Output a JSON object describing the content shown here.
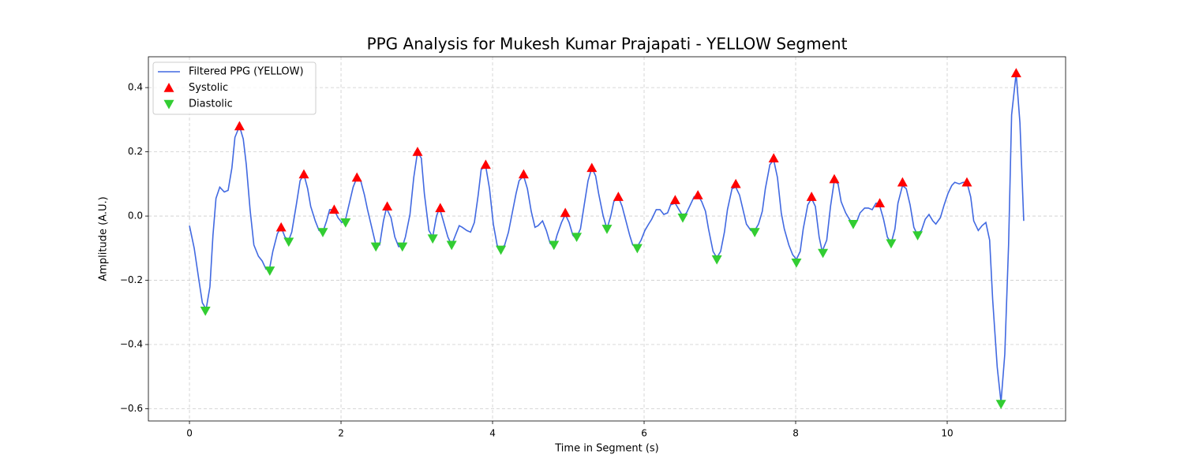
{
  "chart_data": {
    "type": "line",
    "title": "PPG Analysis for Mukesh Kumar Prajapati - YELLOW Segment",
    "x_label": "Time in Segment (s)",
    "y_label": "Amplitude (A.U.)",
    "xlim": [
      -0.542,
      11.5625
    ],
    "ylim": [
      -0.638,
      0.496
    ],
    "xticks": [
      0,
      2,
      4,
      6,
      8,
      10
    ],
    "yticks": [
      {
        "value": -0.6,
        "label": "−0.6"
      },
      {
        "value": -0.4,
        "label": "−0.4"
      },
      {
        "value": -0.2,
        "label": "−0.2"
      },
      {
        "value": 0,
        "label": "0.0"
      },
      0.2,
      0.4
    ],
    "grid": true,
    "legend": "upper left",
    "series": [
      {
        "name": "Filtered PPG (YELLOW)",
        "color": "#4169e1",
        "marker": "line",
        "x": [
          0,
          0.0625,
          0.125,
          0.17,
          0.22,
          0.27,
          0.31,
          0.35,
          0.4,
          0.46,
          0.51,
          0.56,
          0.6,
          0.66,
          0.71,
          0.75,
          0.8,
          0.85,
          0.91,
          0.96,
          1.01,
          1.06,
          1.1,
          1.16,
          1.21,
          1.26,
          1.31,
          1.35,
          1.41,
          1.46,
          1.51,
          1.56,
          1.6,
          1.66,
          1.71,
          1.76,
          1.81,
          1.85,
          1.91,
          1.96,
          2.01,
          2.06,
          2.1,
          2.16,
          2.21,
          2.26,
          2.31,
          2.35,
          2.41,
          2.46,
          2.51,
          2.56,
          2.6,
          2.66,
          2.71,
          2.76,
          2.81,
          2.85,
          2.91,
          2.96,
          3.01,
          3.06,
          3.1,
          3.16,
          3.21,
          3.26,
          3.3,
          3.35,
          3.41,
          3.46,
          3.51,
          3.56,
          3.6,
          3.66,
          3.71,
          3.76,
          3.81,
          3.85,
          3.91,
          3.96,
          4.01,
          4.06,
          4.1,
          4.16,
          4.21,
          4.26,
          4.31,
          4.35,
          4.41,
          4.46,
          4.51,
          4.56,
          4.6,
          4.66,
          4.71,
          4.76,
          4.81,
          4.85,
          4.91,
          4.96,
          5.01,
          5.06,
          5.1,
          5.16,
          5.21,
          5.26,
          5.31,
          5.36,
          5.4,
          5.46,
          5.51,
          5.56,
          5.6,
          5.66,
          5.71,
          5.76,
          5.81,
          5.85,
          5.91,
          5.96,
          6.01,
          6.06,
          6.1,
          6.16,
          6.21,
          6.26,
          6.31,
          6.35,
          6.41,
          6.46,
          6.51,
          6.56,
          6.6,
          6.66,
          6.71,
          6.76,
          6.81,
          6.85,
          6.91,
          6.96,
          7.01,
          7.06,
          7.1,
          7.16,
          7.21,
          7.26,
          7.31,
          7.35,
          7.41,
          7.46,
          7.51,
          7.56,
          7.6,
          7.66,
          7.71,
          7.76,
          7.81,
          7.85,
          7.91,
          7.96,
          8.01,
          8.06,
          8.1,
          8.16,
          8.21,
          8.26,
          8.31,
          8.35,
          8.41,
          8.46,
          8.51,
          8.56,
          8.6,
          8.66,
          8.71,
          8.76,
          8.81,
          8.85,
          8.91,
          8.96,
          9.01,
          9.06,
          9.1,
          9.16,
          9.21,
          9.26,
          9.31,
          9.35,
          9.41,
          9.46,
          9.51,
          9.56,
          9.6,
          9.66,
          9.71,
          9.76,
          9.81,
          9.85,
          9.91,
          9.96,
          10.01,
          10.06,
          10.1,
          10.16,
          10.21,
          10.26,
          10.31,
          10.35,
          10.41,
          10.46,
          10.51,
          10.56,
          10.6,
          10.66,
          10.71,
          10.76,
          10.81,
          10.85,
          10.91,
          10.96,
          11.01
        ],
        "values": [
          -0.03,
          -0.1,
          -0.2,
          -0.27,
          -0.29,
          -0.22,
          -0.06,
          0.055,
          0.09,
          0.075,
          0.08,
          0.15,
          0.245,
          0.28,
          0.24,
          0.16,
          0.02,
          -0.09,
          -0.125,
          -0.14,
          -0.165,
          -0.16,
          -0.11,
          -0.055,
          -0.035,
          -0.065,
          -0.075,
          -0.05,
          0.035,
          0.11,
          0.13,
          0.085,
          0.03,
          -0.015,
          -0.045,
          -0.05,
          -0.015,
          0.02,
          0.02,
          -0.005,
          -0.02,
          -0.01,
          0.03,
          0.09,
          0.12,
          0.11,
          0.065,
          0.02,
          -0.04,
          -0.09,
          -0.09,
          -0.015,
          0.025,
          -0.005,
          -0.065,
          -0.095,
          -0.095,
          -0.065,
          0.005,
          0.12,
          0.2,
          0.18,
          0.07,
          -0.045,
          -0.065,
          0,
          0.025,
          -0.015,
          -0.065,
          -0.09,
          -0.06,
          -0.03,
          -0.035,
          -0.045,
          -0.05,
          -0.02,
          0.065,
          0.145,
          0.155,
          0.085,
          -0.025,
          -0.09,
          -0.105,
          -0.09,
          -0.05,
          0.01,
          0.07,
          0.11,
          0.125,
          0.085,
          0.015,
          -0.035,
          -0.03,
          -0.015,
          -0.045,
          -0.085,
          -0.095,
          -0.06,
          -0.02,
          0.005,
          -0.02,
          -0.06,
          -0.07,
          -0.04,
          0.035,
          0.11,
          0.15,
          0.125,
          0.07,
          0,
          -0.04,
          0,
          0.045,
          0.06,
          0.03,
          -0.015,
          -0.06,
          -0.09,
          -0.095,
          -0.075,
          -0.045,
          -0.025,
          -0.01,
          0.02,
          0.02,
          0.005,
          0.01,
          0.035,
          0.04,
          0.02,
          0,
          0.01,
          0.03,
          0.06,
          0.065,
          0.045,
          0.015,
          -0.04,
          -0.11,
          -0.13,
          -0.11,
          -0.05,
          0.02,
          0.085,
          0.09,
          0.065,
          0.015,
          -0.025,
          -0.045,
          -0.045,
          -0.025,
          0.015,
          0.085,
          0.16,
          0.175,
          0.12,
          0.01,
          -0.04,
          -0.09,
          -0.12,
          -0.135,
          -0.11,
          -0.04,
          0.035,
          0.055,
          0.03,
          -0.065,
          -0.11,
          -0.075,
          0.03,
          0.11,
          0.1,
          0.045,
          0.01,
          -0.01,
          -0.025,
          -0.015,
          0.01,
          0.025,
          0.025,
          0.02,
          0.04,
          0.04,
          -0.01,
          -0.065,
          -0.085,
          -0.04,
          0.04,
          0.095,
          0.085,
          0.035,
          -0.035,
          -0.055,
          -0.045,
          -0.01,
          0.005,
          -0.015,
          -0.025,
          -0.005,
          0.035,
          0.07,
          0.095,
          0.105,
          0.1,
          0.105,
          0.105,
          0.06,
          -0.015,
          -0.045,
          -0.03,
          -0.02,
          -0.075,
          -0.26,
          -0.47,
          -0.58,
          -0.43,
          -0.09,
          0.315,
          0.445,
          0.29,
          -0.015
        ]
      },
      {
        "name": "Systolic",
        "color": "#ff0000",
        "marker": "triangle-up",
        "x": [
          0.66,
          1.21,
          1.51,
          1.91,
          2.21,
          2.61,
          3.01,
          3.31,
          3.91,
          4.41,
          4.96,
          5.31,
          5.66,
          6.41,
          6.71,
          7.21,
          7.71,
          8.21,
          8.51,
          9.11,
          9.41,
          10.26,
          10.91
        ],
        "values": [
          0.28,
          -0.035,
          0.13,
          0.02,
          0.12,
          0.03,
          0.2,
          0.025,
          0.16,
          0.13,
          0.01,
          0.15,
          0.06,
          0.05,
          0.065,
          0.1,
          0.18,
          0.06,
          0.115,
          0.04,
          0.105,
          0.105,
          0.445
        ]
      },
      {
        "name": "Diastolic",
        "color": "#32cd32",
        "marker": "triangle-down",
        "x": [
          0.21,
          1.06,
          1.31,
          1.76,
          2.06,
          2.46,
          2.81,
          3.21,
          3.46,
          4.11,
          4.81,
          5.11,
          5.51,
          5.91,
          6.51,
          6.96,
          7.46,
          8.01,
          8.36,
          8.76,
          9.26,
          9.61,
          10.71
        ],
        "values": [
          -0.295,
          -0.17,
          -0.08,
          -0.05,
          -0.02,
          -0.095,
          -0.095,
          -0.07,
          -0.09,
          -0.105,
          -0.09,
          -0.065,
          -0.04,
          -0.1,
          -0.005,
          -0.135,
          -0.05,
          -0.145,
          -0.115,
          -0.025,
          -0.085,
          -0.06,
          -0.585
        ]
      }
    ]
  }
}
